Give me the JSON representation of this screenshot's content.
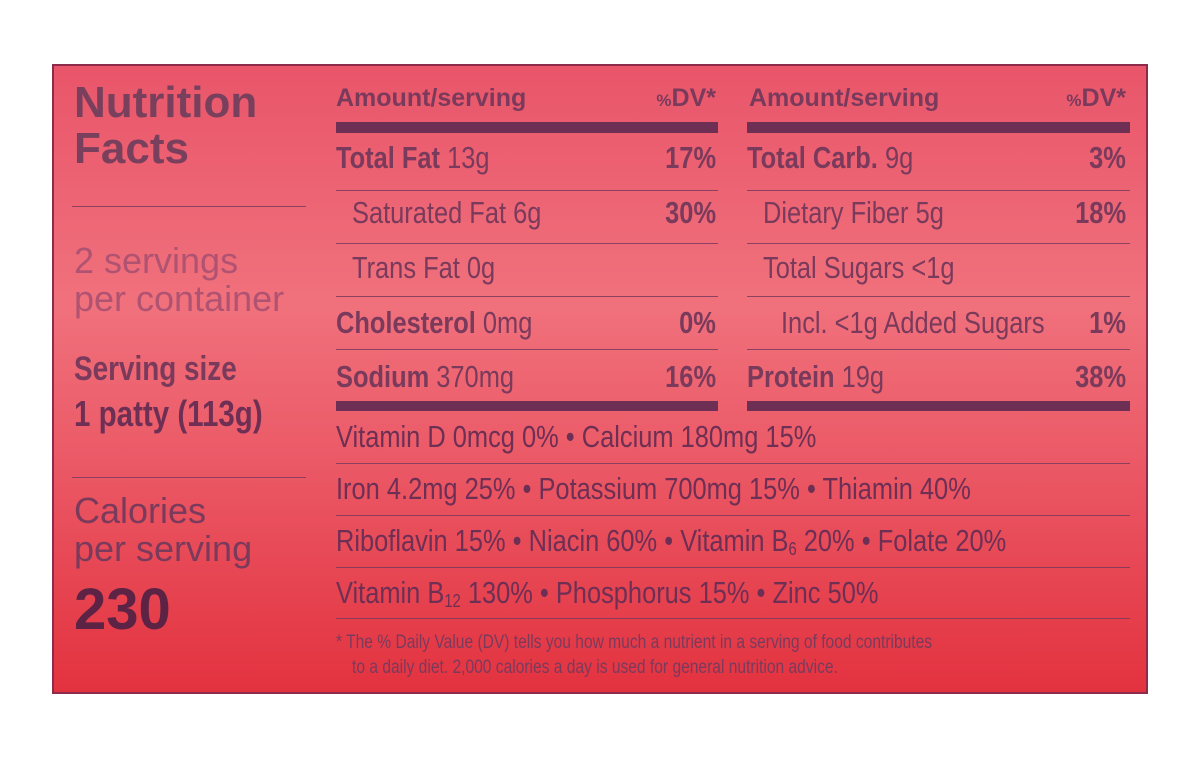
{
  "panel": {
    "title_line1": "Nutrition",
    "title_line2": "Facts",
    "servings_line1": "2 servings",
    "servings_line2": "per container",
    "serving_size_label": "Serving size",
    "serving_size_value": "1 patty (113g)",
    "calories_line1": "Calories",
    "calories_line2": "per serving",
    "calories_value": "230"
  },
  "headers": {
    "amount": "Amount/serving",
    "pct_sign": "%",
    "dv": "DV*"
  },
  "left_rows": [
    {
      "name": "Total Fat",
      "amount": "13g",
      "dv": "17%"
    },
    {
      "name": "Saturated Fat",
      "amount": "6g",
      "dv": "30%"
    },
    {
      "name": "Trans Fat",
      "amount": "0g",
      "dv": ""
    },
    {
      "name": "Cholesterol",
      "amount": "0mg",
      "dv": "0%"
    },
    {
      "name": "Sodium",
      "amount": "370mg",
      "dv": "16%"
    }
  ],
  "right_rows": [
    {
      "name": "Total Carb.",
      "amount": "9g",
      "dv": "3%"
    },
    {
      "name": "Dietary Fiber",
      "amount": "5g",
      "dv": "18%"
    },
    {
      "name": "Total Sugars",
      "amount": "<1g",
      "dv": ""
    },
    {
      "name": "Incl. <1g Added Sugars",
      "amount": "",
      "dv": "1%"
    },
    {
      "name": "Protein",
      "amount": "19g",
      "dv": "38%"
    }
  ],
  "vitamins": {
    "line1": "Vitamin D 0mcg 0% • Calcium 180mg 15%",
    "line2": "Iron 4.2mg 25% • Potassium 700mg 15% • Thiamin 40%",
    "line3_a": "Riboflavin 15% • Niacin 60% • Vitamin B",
    "line3_sub": "6",
    "line3_b": " 20% • Folate 20%",
    "line4_a": "Vitamin B",
    "line4_sub": "12",
    "line4_b": " 130% • Phosphorus 15% • Zinc 50%"
  },
  "footnote": {
    "line1": "* The % Daily Value (DV) tells you how much a nutrient in a serving of food contributes",
    "line2": "to a daily diet. 2,000 calories a day is used for general nutrition advice."
  },
  "colors": {
    "panel_top": "#e9556a",
    "panel_bottom": "#e3323f",
    "text": "#7a3a5c",
    "rule": "#6e2f55"
  }
}
